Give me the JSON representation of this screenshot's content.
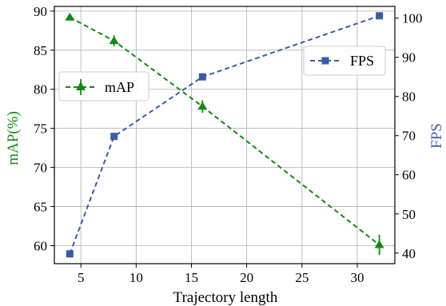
{
  "chart_data": {
    "type": "line",
    "title": "",
    "xlabel": "Trajectory length",
    "ylabel_left": "mAP(%)",
    "ylabel_right": "FPS",
    "xlim": [
      2.6,
      33.4
    ],
    "ylim_left": [
      57.7,
      90.6
    ],
    "ylim_right": [
      37.3,
      103
    ],
    "x_ticks": [
      5,
      10,
      15,
      20,
      25,
      30
    ],
    "y_ticks_left": [
      60,
      65,
      70,
      75,
      80,
      85,
      90
    ],
    "y_ticks_right": [
      40,
      50,
      60,
      70,
      80,
      90,
      100
    ],
    "grid": true,
    "series": [
      {
        "name": "mAP",
        "axis": "left",
        "x": [
          4,
          8,
          16,
          32
        ],
        "values": [
          89.2,
          86.2,
          77.8,
          60.1
        ],
        "error": [
          0.3,
          0.7,
          0.8,
          1.3
        ],
        "color": "#0f8a0f",
        "style": "dashed",
        "marker": "triangle",
        "legend_position": "center-left"
      },
      {
        "name": "FPS",
        "axis": "right",
        "x": [
          4,
          8,
          16,
          32
        ],
        "values": [
          39.8,
          69.8,
          85.0,
          100.6
        ],
        "color": "#3b5ba7",
        "style": "dashed",
        "marker": "square",
        "legend_position": "top-right"
      }
    ]
  }
}
